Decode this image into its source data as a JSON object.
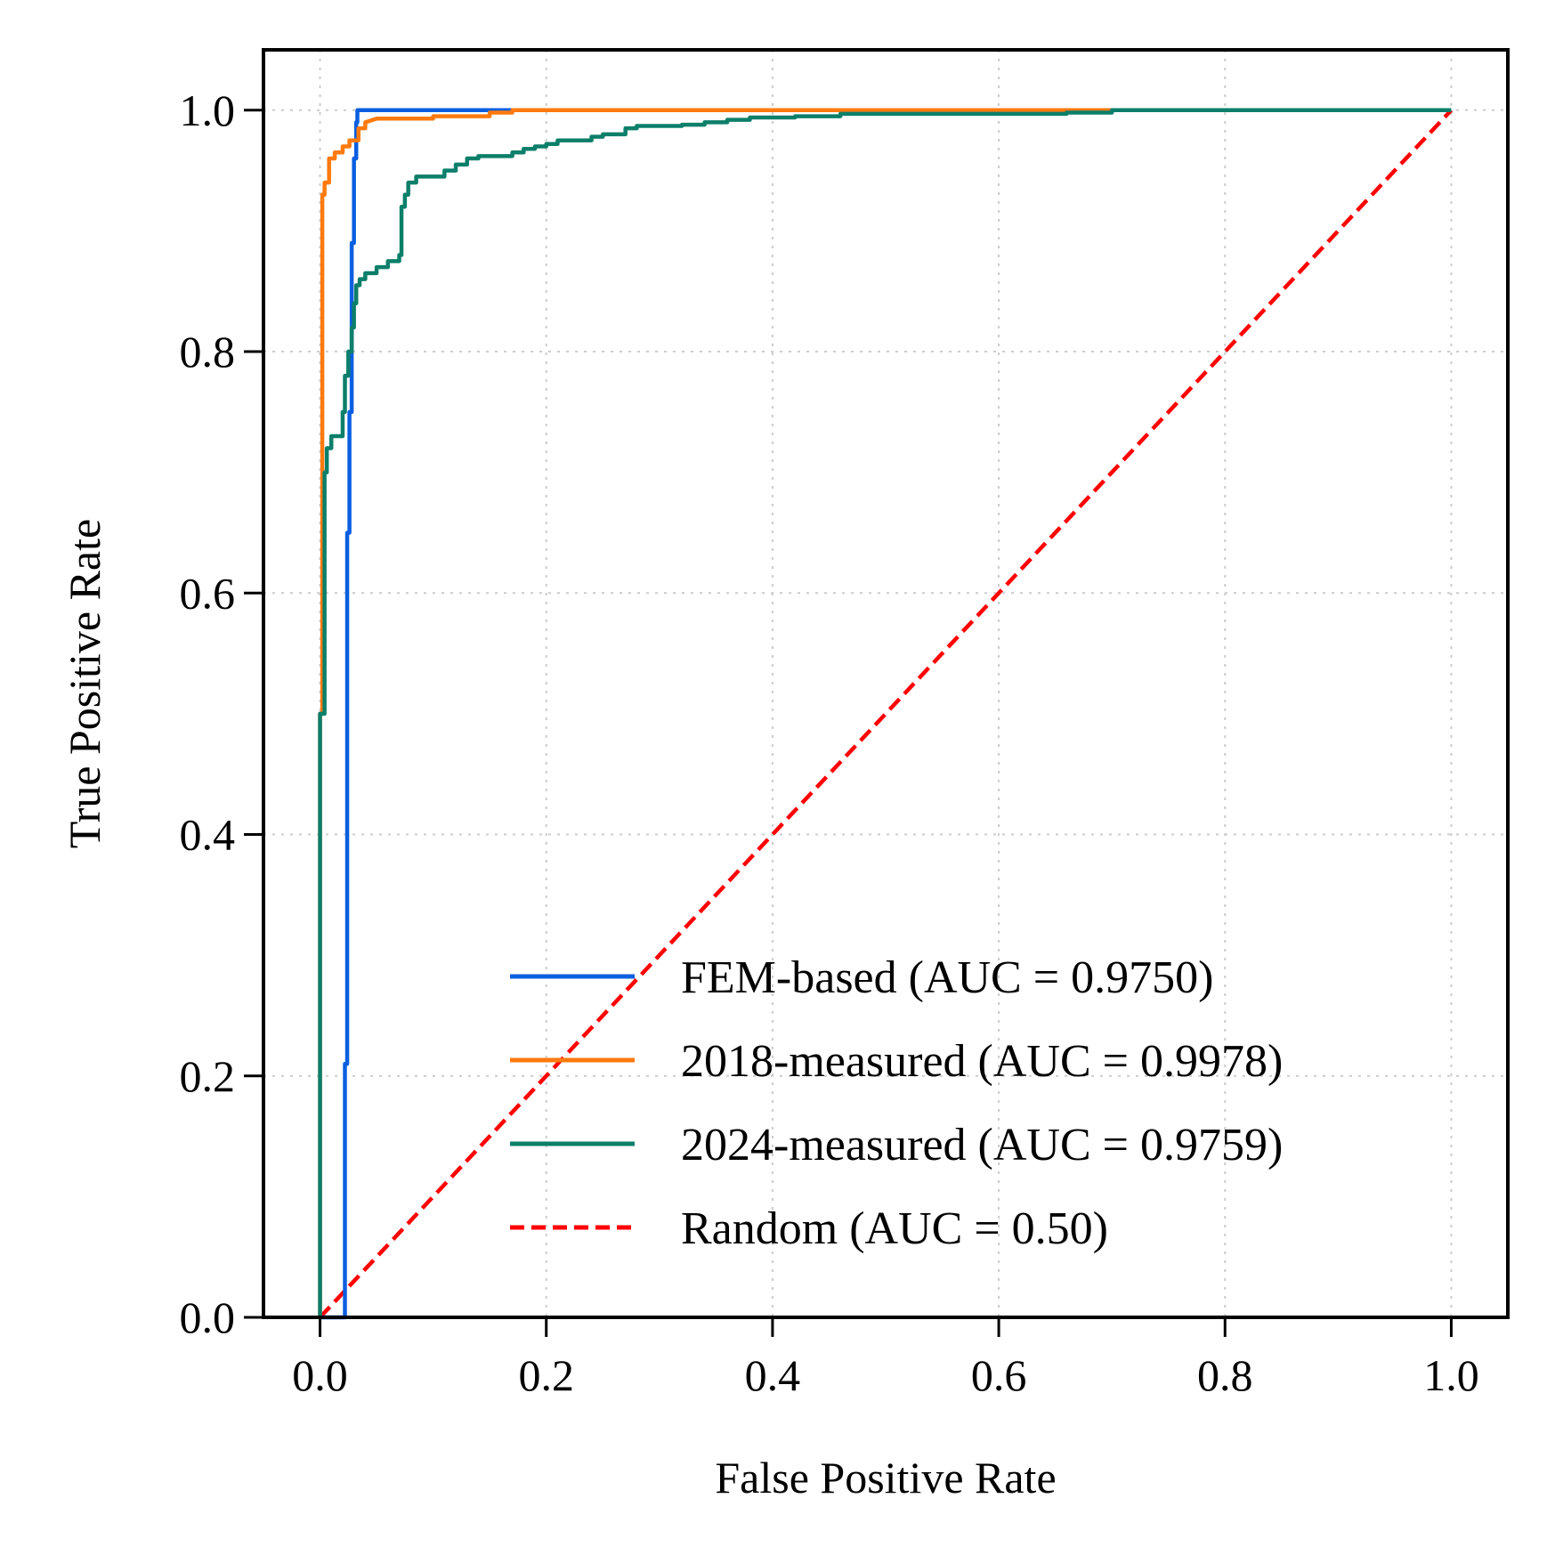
{
  "chart_data": {
    "type": "line",
    "xlabel": "False Positive Rate",
    "ylabel": "True Positive Rate",
    "xlim": [
      -0.05,
      1.05
    ],
    "ylim": [
      0.0,
      1.05
    ],
    "xticks": [
      "0.0",
      "0.2",
      "0.4",
      "0.6",
      "0.8",
      "1.0"
    ],
    "yticks": [
      "0.0",
      "0.2",
      "0.4",
      "0.6",
      "0.8",
      "1.0"
    ],
    "grid": true,
    "legend_position": "lower-right",
    "series": [
      {
        "name": "FEM-based (AUC = 0.9750)",
        "color": "#0a5fe0",
        "dash": "solid",
        "x": [
          0.0,
          0.022,
          0.022,
          0.024,
          0.024,
          0.026,
          0.026,
          0.028,
          0.028,
          0.03,
          0.03,
          0.032,
          0.032,
          0.033,
          0.033,
          0.16,
          1.0
        ],
        "y": [
          0.0,
          0.0,
          0.21,
          0.21,
          0.65,
          0.65,
          0.75,
          0.75,
          0.89,
          0.89,
          0.96,
          0.96,
          0.99,
          0.99,
          1.0,
          1.0,
          1.0
        ]
      },
      {
        "name": "2018-measured (AUC = 0.9978)",
        "color": "#ff7a0e",
        "dash": "solid",
        "x": [
          0.0,
          0.0,
          0.002,
          0.002,
          0.004,
          0.004,
          0.008,
          0.008,
          0.013,
          0.013,
          0.02,
          0.02,
          0.026,
          0.026,
          0.034,
          0.034,
          0.04,
          0.04,
          0.05,
          0.1,
          0.1,
          0.15,
          0.15,
          0.17,
          0.17,
          0.7,
          1.0
        ],
        "y": [
          0.0,
          0.5,
          0.5,
          0.93,
          0.93,
          0.94,
          0.94,
          0.96,
          0.96,
          0.965,
          0.965,
          0.97,
          0.97,
          0.975,
          0.975,
          0.985,
          0.985,
          0.99,
          0.993,
          0.993,
          0.995,
          0.995,
          0.998,
          0.998,
          1.0,
          1.0,
          1.0
        ]
      },
      {
        "name": "2024-measured (AUC = 0.9759)",
        "color": "#0c7f6a",
        "dash": "solid",
        "x": [
          0.0,
          0.0,
          0.004,
          0.004,
          0.006,
          0.006,
          0.01,
          0.01,
          0.02,
          0.02,
          0.022,
          0.022,
          0.025,
          0.025,
          0.028,
          0.028,
          0.03,
          0.03,
          0.032,
          0.032,
          0.035,
          0.035,
          0.04,
          0.04,
          0.05,
          0.05,
          0.06,
          0.06,
          0.07,
          0.07,
          0.072,
          0.072,
          0.075,
          0.075,
          0.078,
          0.078,
          0.085,
          0.085,
          0.11,
          0.11,
          0.12,
          0.12,
          0.13,
          0.13,
          0.14,
          0.14,
          0.17,
          0.17,
          0.18,
          0.18,
          0.19,
          0.19,
          0.2,
          0.2,
          0.21,
          0.21,
          0.24,
          0.24,
          0.25,
          0.25,
          0.27,
          0.27,
          0.28,
          0.28,
          0.32,
          0.32,
          0.34,
          0.34,
          0.36,
          0.36,
          0.38,
          0.38,
          0.42,
          0.42,
          0.46,
          0.46,
          0.66,
          0.66,
          0.7,
          0.7,
          1.0
        ],
        "y": [
          0.0,
          0.5,
          0.5,
          0.7,
          0.7,
          0.72,
          0.72,
          0.73,
          0.73,
          0.75,
          0.75,
          0.78,
          0.78,
          0.8,
          0.8,
          0.82,
          0.82,
          0.84,
          0.84,
          0.855,
          0.855,
          0.86,
          0.86,
          0.865,
          0.865,
          0.87,
          0.87,
          0.875,
          0.875,
          0.88,
          0.88,
          0.92,
          0.92,
          0.93,
          0.93,
          0.94,
          0.94,
          0.945,
          0.945,
          0.95,
          0.95,
          0.955,
          0.955,
          0.96,
          0.96,
          0.962,
          0.962,
          0.965,
          0.965,
          0.968,
          0.968,
          0.97,
          0.97,
          0.972,
          0.972,
          0.975,
          0.975,
          0.978,
          0.978,
          0.98,
          0.98,
          0.985,
          0.985,
          0.987,
          0.987,
          0.988,
          0.988,
          0.99,
          0.99,
          0.992,
          0.992,
          0.994,
          0.994,
          0.995,
          0.995,
          0.997,
          0.997,
          0.998,
          0.998,
          1.0,
          1.0
        ]
      },
      {
        "name": "Random (AUC = 0.50)",
        "color": "#ff0000",
        "dash": "dashed",
        "x": [
          0.0,
          1.0
        ],
        "y": [
          0.0,
          1.0
        ]
      }
    ]
  }
}
